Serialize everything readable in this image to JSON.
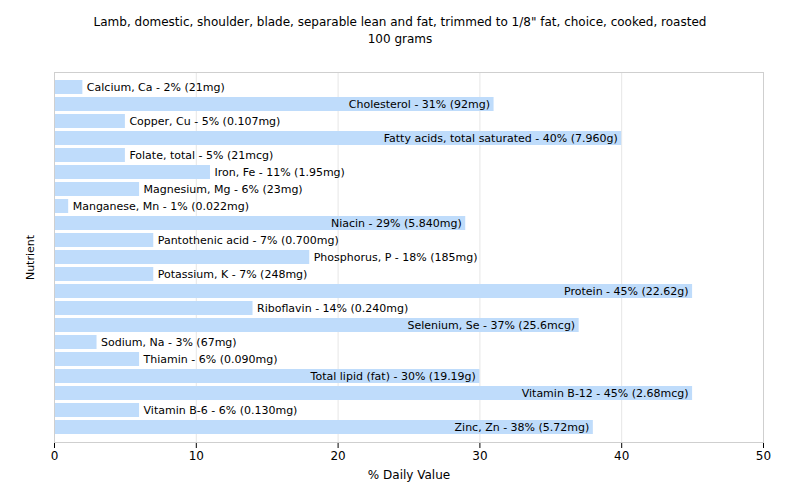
{
  "chart_data": {
    "type": "bar",
    "orientation": "horizontal",
    "title": "Lamb, domestic, shoulder, blade, separable lean and fat, trimmed to 1/8\" fat, choice, cooked, roasted",
    "subtitle": "100 grams",
    "x_label": "% Daily Value",
    "y_label": "Nutrient",
    "categories": [
      "Calcium, Ca",
      "Cholesterol",
      "Copper, Cu",
      "Fatty acids, total saturated",
      "Folate, total",
      "Iron, Fe",
      "Magnesium, Mg",
      "Manganese, Mn",
      "Niacin",
      "Pantothenic acid",
      "Phosphorus, P",
      "Potassium, K",
      "Protein",
      "Riboflavin",
      "Selenium, Se",
      "Sodium, Na",
      "Thiamin",
      "Total lipid (fat)",
      "Vitamin B-12",
      "Vitamin B-6",
      "Zinc, Zn"
    ],
    "values": [
      2,
      31,
      5,
      40,
      5,
      11,
      6,
      1,
      29,
      7,
      18,
      7,
      45,
      14,
      37,
      3,
      6,
      30,
      45,
      6,
      38
    ],
    "value_labels": [
      "Calcium, Ca - 2% (21mg)",
      "Cholesterol - 31% (92mg)",
      "Copper, Cu - 5% (0.107mg)",
      "Fatty acids, total saturated - 40% (7.960g)",
      "Folate, total - 5% (21mcg)",
      "Iron, Fe - 11% (1.95mg)",
      "Magnesium, Mg - 6% (23mg)",
      "Manganese, Mn - 1% (0.022mg)",
      "Niacin - 29% (5.840mg)",
      "Pantothenic acid - 7% (0.700mg)",
      "Phosphorus, P - 18% (185mg)",
      "Potassium, K - 7% (248mg)",
      "Protein - 45% (22.62g)",
      "Riboflavin - 14% (0.240mg)",
      "Selenium, Se - 37% (25.6mcg)",
      "Sodium, Na - 3% (67mg)",
      "Thiamin - 6% (0.090mg)",
      "Total lipid (fat) - 30% (19.19g)",
      "Vitamin B-12 - 45% (2.68mcg)",
      "Vitamin B-6 - 6% (0.130mg)",
      "Zinc, Zn - 38% (5.72mg)"
    ],
    "data_labels": true,
    "color": "#bfdcfb",
    "xlim": [
      0,
      50
    ],
    "xticks": [
      0,
      10,
      20,
      30,
      40,
      50
    ],
    "grid": true,
    "tick_labels": "x"
  }
}
